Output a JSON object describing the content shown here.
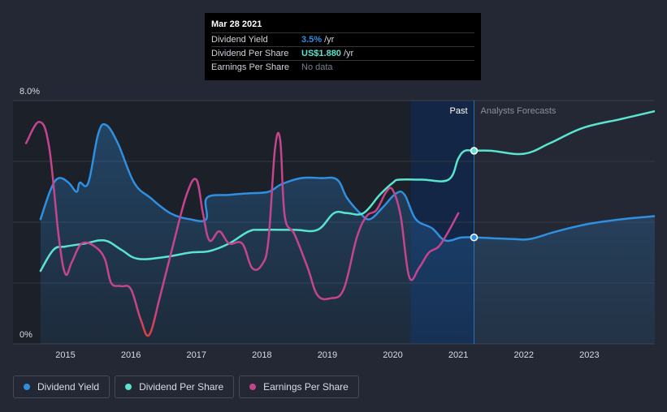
{
  "chart_data": {
    "type": "line",
    "y_axis": {
      "top_label": "8.0%",
      "bottom_label": "0%",
      "range": [
        0,
        8
      ]
    },
    "x_ticks": [
      "2015",
      "2016",
      "2017",
      "2018",
      "2019",
      "2020",
      "2021",
      "2022",
      "2023"
    ],
    "x_range": [
      2014.2,
      2024.0
    ],
    "divider_date": 2021.24,
    "past_label": "Past",
    "forecast_label": "Analysts Forecasts",
    "series": [
      {
        "name": "Dividend Yield",
        "color": "#2f8fe0",
        "area": true,
        "points": [
          [
            2014.62,
            4.1
          ],
          [
            2014.78,
            5.1
          ],
          [
            2014.9,
            5.45
          ],
          [
            2015.05,
            5.3
          ],
          [
            2015.17,
            5.0
          ],
          [
            2015.22,
            5.3
          ],
          [
            2015.35,
            5.3
          ],
          [
            2015.5,
            6.9
          ],
          [
            2015.62,
            7.2
          ],
          [
            2015.8,
            6.6
          ],
          [
            2016.05,
            5.3
          ],
          [
            2016.3,
            4.8
          ],
          [
            2016.6,
            4.3
          ],
          [
            2016.9,
            4.1
          ],
          [
            2017.15,
            4.1
          ],
          [
            2017.16,
            4.8
          ],
          [
            2017.5,
            4.9
          ],
          [
            2017.8,
            4.95
          ],
          [
            2018.1,
            5.0
          ],
          [
            2018.3,
            5.25
          ],
          [
            2018.6,
            5.45
          ],
          [
            2018.9,
            5.45
          ],
          [
            2019.15,
            5.4
          ],
          [
            2019.3,
            4.8
          ],
          [
            2019.5,
            4.3
          ],
          [
            2019.65,
            4.1
          ],
          [
            2019.85,
            4.5
          ],
          [
            2020.05,
            4.95
          ],
          [
            2020.18,
            4.9
          ],
          [
            2020.35,
            4.1
          ],
          [
            2020.6,
            3.8
          ],
          [
            2020.8,
            3.4
          ],
          [
            2021.05,
            3.5
          ],
          [
            2021.24,
            3.5
          ],
          [
            2021.8,
            3.45
          ],
          [
            2022.1,
            3.45
          ],
          [
            2022.5,
            3.7
          ],
          [
            2023.0,
            3.95
          ],
          [
            2023.5,
            4.1
          ],
          [
            2024.0,
            4.2
          ]
        ]
      },
      {
        "name": "Dividend Per Share",
        "color": "#5ae3ce",
        "area": false,
        "points": [
          [
            2014.62,
            2.4
          ],
          [
            2014.82,
            3.1
          ],
          [
            2015.0,
            3.2
          ],
          [
            2015.3,
            3.3
          ],
          [
            2015.6,
            3.4
          ],
          [
            2015.85,
            3.1
          ],
          [
            2016.1,
            2.8
          ],
          [
            2016.5,
            2.85
          ],
          [
            2016.9,
            3.0
          ],
          [
            2017.2,
            3.05
          ],
          [
            2017.5,
            3.3
          ],
          [
            2017.8,
            3.7
          ],
          [
            2018.0,
            3.75
          ],
          [
            2018.5,
            3.75
          ],
          [
            2018.85,
            3.75
          ],
          [
            2019.1,
            4.3
          ],
          [
            2019.3,
            4.3
          ],
          [
            2019.55,
            4.3
          ],
          [
            2019.8,
            4.9
          ],
          [
            2020.0,
            5.3
          ],
          [
            2020.1,
            5.4
          ],
          [
            2020.45,
            5.4
          ],
          [
            2020.85,
            5.4
          ],
          [
            2021.0,
            6.1
          ],
          [
            2021.1,
            6.35
          ],
          [
            2021.24,
            6.35
          ],
          [
            2021.5,
            6.35
          ],
          [
            2022.0,
            6.25
          ],
          [
            2022.4,
            6.6
          ],
          [
            2022.9,
            7.1
          ],
          [
            2023.5,
            7.4
          ],
          [
            2024.0,
            7.65
          ]
        ]
      },
      {
        "name": "Earnings Per Share",
        "color": "#c4458d",
        "area": false,
        "points": [
          [
            2014.4,
            6.6
          ],
          [
            2014.6,
            7.3
          ],
          [
            2014.75,
            6.5
          ],
          [
            2014.9,
            3.5
          ],
          [
            2015.0,
            2.3
          ],
          [
            2015.1,
            2.7
          ],
          [
            2015.25,
            3.3
          ],
          [
            2015.45,
            3.2
          ],
          [
            2015.6,
            2.8
          ],
          [
            2015.7,
            2.0
          ],
          [
            2015.85,
            1.9
          ],
          [
            2016.0,
            1.8
          ],
          [
            2016.15,
            0.8
          ],
          [
            2016.28,
            0.3
          ],
          [
            2016.45,
            1.6
          ],
          [
            2016.65,
            3.3
          ],
          [
            2016.85,
            4.9
          ],
          [
            2017.0,
            5.4
          ],
          [
            2017.1,
            4.3
          ],
          [
            2017.2,
            3.4
          ],
          [
            2017.35,
            3.7
          ],
          [
            2017.5,
            3.3
          ],
          [
            2017.7,
            3.3
          ],
          [
            2017.85,
            2.5
          ],
          [
            2018.0,
            2.6
          ],
          [
            2018.1,
            3.4
          ],
          [
            2018.2,
            6.4
          ],
          [
            2018.28,
            6.7
          ],
          [
            2018.35,
            4.2
          ],
          [
            2018.5,
            3.6
          ],
          [
            2018.7,
            2.5
          ],
          [
            2018.85,
            1.6
          ],
          [
            2019.05,
            1.5
          ],
          [
            2019.25,
            1.8
          ],
          [
            2019.45,
            3.5
          ],
          [
            2019.6,
            4.2
          ],
          [
            2019.75,
            4.4
          ],
          [
            2019.9,
            5.0
          ],
          [
            2020.0,
            5.05
          ],
          [
            2020.12,
            4.2
          ],
          [
            2020.25,
            2.2
          ],
          [
            2020.4,
            2.5
          ],
          [
            2020.55,
            3.0
          ],
          [
            2020.7,
            3.2
          ],
          [
            2020.85,
            3.7
          ],
          [
            2021.0,
            4.3
          ]
        ]
      }
    ],
    "highlight_points": [
      {
        "series": "Dividend Per Share",
        "x": 2021.24,
        "y": 6.35
      },
      {
        "series": "Dividend Yield",
        "x": 2021.24,
        "y": 3.5
      }
    ]
  },
  "tooltip": {
    "date": "Mar 28 2021",
    "rows": [
      {
        "label": "Dividend Yield",
        "value": "3.5%",
        "unit": "/yr",
        "color": "#2f8fe0"
      },
      {
        "label": "Dividend Per Share",
        "value": "US$1.880",
        "unit": "/yr",
        "color": "#5ae3ce"
      },
      {
        "label": "Earnings Per Share",
        "value": "No data",
        "unit": "",
        "color": "#7b818c"
      }
    ]
  },
  "legend": [
    {
      "label": "Dividend Yield",
      "color": "#2f8fe0"
    },
    {
      "label": "Dividend Per Share",
      "color": "#5ae3ce"
    },
    {
      "label": "Earnings Per Share",
      "color": "#c4458d"
    }
  ]
}
